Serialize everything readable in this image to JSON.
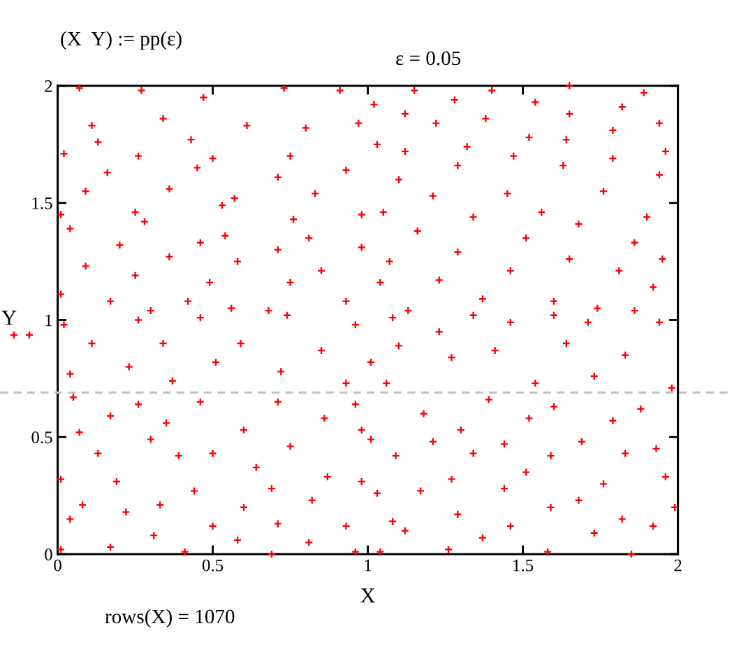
{
  "chart_data": {
    "type": "scatter",
    "xlabel": "X",
    "ylabel": "Y",
    "annotations": [
      "(X  Y) := pp(ε)",
      "ε = 0.05",
      "rows(X) = 1070"
    ],
    "xlim": [
      0,
      2
    ],
    "ylim": [
      0,
      2
    ],
    "xticks": [
      0,
      0.5,
      1,
      1.5,
      2
    ],
    "yticks": [
      0,
      0.5,
      1,
      1.5,
      2
    ],
    "grid": false,
    "marker": "cross",
    "ref_lines": [
      {
        "axis": "y",
        "value": 0.69,
        "color": "#c0c0c0",
        "line_style": "dashed"
      }
    ],
    "series": [
      {
        "color": "#ff0000",
        "x": [
          0.07,
          0.27,
          0.47,
          0.73,
          0.91,
          0.11,
          0.34,
          0.61,
          0.8,
          0.13,
          0.43,
          0.97,
          0.02,
          0.26,
          0.5,
          0.75,
          0.16,
          0.45,
          0.71,
          0.93,
          0.09,
          0.36,
          0.57,
          0.83,
          0.01,
          0.25,
          0.53,
          0.76,
          0.98,
          0.04,
          0.28,
          0.54,
          0.81,
          0.2,
          0.46,
          0.71,
          0.98,
          0.09,
          0.36,
          0.58,
          0.85,
          0.25,
          0.49,
          0.75,
          0.01,
          0.17,
          0.42,
          0.68,
          0.93,
          0.3,
          0.56,
          1.15,
          1.4,
          1.65,
          1.89,
          1.02,
          1.28,
          1.54,
          1.82,
          1.12,
          1.38,
          1.65,
          1.94,
          1.22,
          1.52,
          1.79,
          1.03,
          1.32,
          1.64,
          1.96,
          1.12,
          1.47,
          1.79,
          1.29,
          1.63,
          1.94,
          1.1,
          1.45,
          1.76,
          1.21,
          1.56,
          1.9,
          1.05,
          1.34,
          1.68,
          1.16,
          1.51,
          1.86,
          1.29,
          1.65,
          1.95,
          1.07,
          1.46,
          1.81,
          1.23,
          1.6,
          1.92,
          1.04,
          1.37,
          1.74,
          1.13,
          0.02,
          0.26,
          0.46,
          0.74,
          0.96,
          0.11,
          0.34,
          0.59,
          0.85,
          0.23,
          0.51,
          0.72,
          1.01,
          0.05,
          0.26,
          0.46,
          0.71,
          0.96,
          0.17,
          0.35,
          0.6,
          0.86,
          0.04,
          0.37,
          0.93,
          0.07,
          0.3,
          0.5,
          0.75,
          0.98,
          0.01,
          0.13,
          0.39,
          0.64,
          0.87,
          0.19,
          0.44,
          0.69,
          0.98,
          0.08,
          0.33,
          0.6,
          0.82,
          0.22,
          0.5,
          0.71,
          0.93,
          0.04,
          0.31,
          0.58,
          0.81,
          0.01,
          0.17,
          0.41,
          0.69,
          0.96,
          1.08,
          1.34,
          1.6,
          1.86,
          1.23,
          1.46,
          1.71,
          1.94,
          1.1,
          1.41,
          1.64,
          1.83,
          1.27,
          1.54,
          1.73,
          1.98,
          1.06,
          1.39,
          1.88,
          1.18,
          1.6,
          1.79,
          1.3,
          1.52,
          1.01,
          1.21,
          1.44,
          1.69,
          1.93,
          1.09,
          1.34,
          1.59,
          1.83,
          1.27,
          1.51,
          1.76,
          1.96,
          1.03,
          1.17,
          1.44,
          1.68,
          1.99,
          1.29,
          1.59,
          1.82,
          1.08,
          1.46,
          1.12,
          1.37,
          1.73,
          1.92,
          1.26,
          1.58,
          1.85,
          1.04
        ],
        "values": [
          1.99,
          1.98,
          1.95,
          1.99,
          1.98,
          1.83,
          1.86,
          1.83,
          1.82,
          1.76,
          1.77,
          1.84,
          1.71,
          1.7,
          1.69,
          1.7,
          1.63,
          1.65,
          1.61,
          1.64,
          1.55,
          1.56,
          1.52,
          1.54,
          1.45,
          1.46,
          1.49,
          1.43,
          1.45,
          1.39,
          1.42,
          1.36,
          1.35,
          1.32,
          1.33,
          1.3,
          1.31,
          1.23,
          1.27,
          1.25,
          1.21,
          1.19,
          1.16,
          1.16,
          1.11,
          1.08,
          1.08,
          1.04,
          1.08,
          1.04,
          1.05,
          1.98,
          1.98,
          2,
          1.97,
          1.92,
          1.94,
          1.93,
          1.91,
          1.88,
          1.86,
          1.88,
          1.84,
          1.84,
          1.78,
          1.81,
          1.75,
          1.74,
          1.77,
          1.72,
          1.72,
          1.7,
          1.69,
          1.66,
          1.66,
          1.62,
          1.6,
          1.54,
          1.55,
          1.53,
          1.46,
          1.44,
          1.46,
          1.44,
          1.41,
          1.38,
          1.35,
          1.33,
          1.29,
          1.26,
          1.26,
          1.25,
          1.21,
          1.21,
          1.17,
          1.08,
          1.14,
          1.16,
          1.09,
          1.05,
          1.04,
          0.98,
          1.0,
          1.01,
          1.02,
          0.98,
          0.9,
          0.9,
          0.9,
          0.87,
          0.8,
          0.82,
          0.78,
          0.82,
          0.67,
          0.64,
          0.65,
          0.65,
          0.64,
          0.59,
          0.56,
          0.53,
          0.58,
          0.77,
          0.74,
          0.73,
          0.52,
          0.49,
          0.43,
          0.46,
          0.53,
          0.32,
          0.43,
          0.42,
          0.37,
          0.33,
          0.31,
          0.27,
          0.28,
          0.31,
          0.21,
          0.21,
          0.2,
          0.23,
          0.18,
          0.12,
          0.13,
          0.12,
          0.15,
          0.08,
          0.06,
          0.05,
          0.02,
          0.03,
          0.01,
          0,
          0.01,
          1.01,
          1.02,
          1.02,
          1.04,
          0.95,
          0.99,
          0.99,
          0.99,
          0.89,
          0.87,
          0.9,
          0.85,
          0.84,
          0.73,
          0.76,
          0.71,
          0.73,
          0.66,
          0.62,
          0.6,
          0.63,
          0.57,
          0.53,
          0.58,
          0.49,
          0.48,
          0.47,
          0.48,
          0.45,
          0.42,
          0.43,
          0.42,
          0.43,
          0.32,
          0.35,
          0.3,
          0.33,
          0.26,
          0.27,
          0.28,
          0.23,
          0.2,
          0.17,
          0.2,
          0.15,
          0.14,
          0.12,
          0.1,
          0.07,
          0.09,
          0.12,
          0.02,
          0.01,
          0,
          0.01
        ]
      }
    ]
  }
}
